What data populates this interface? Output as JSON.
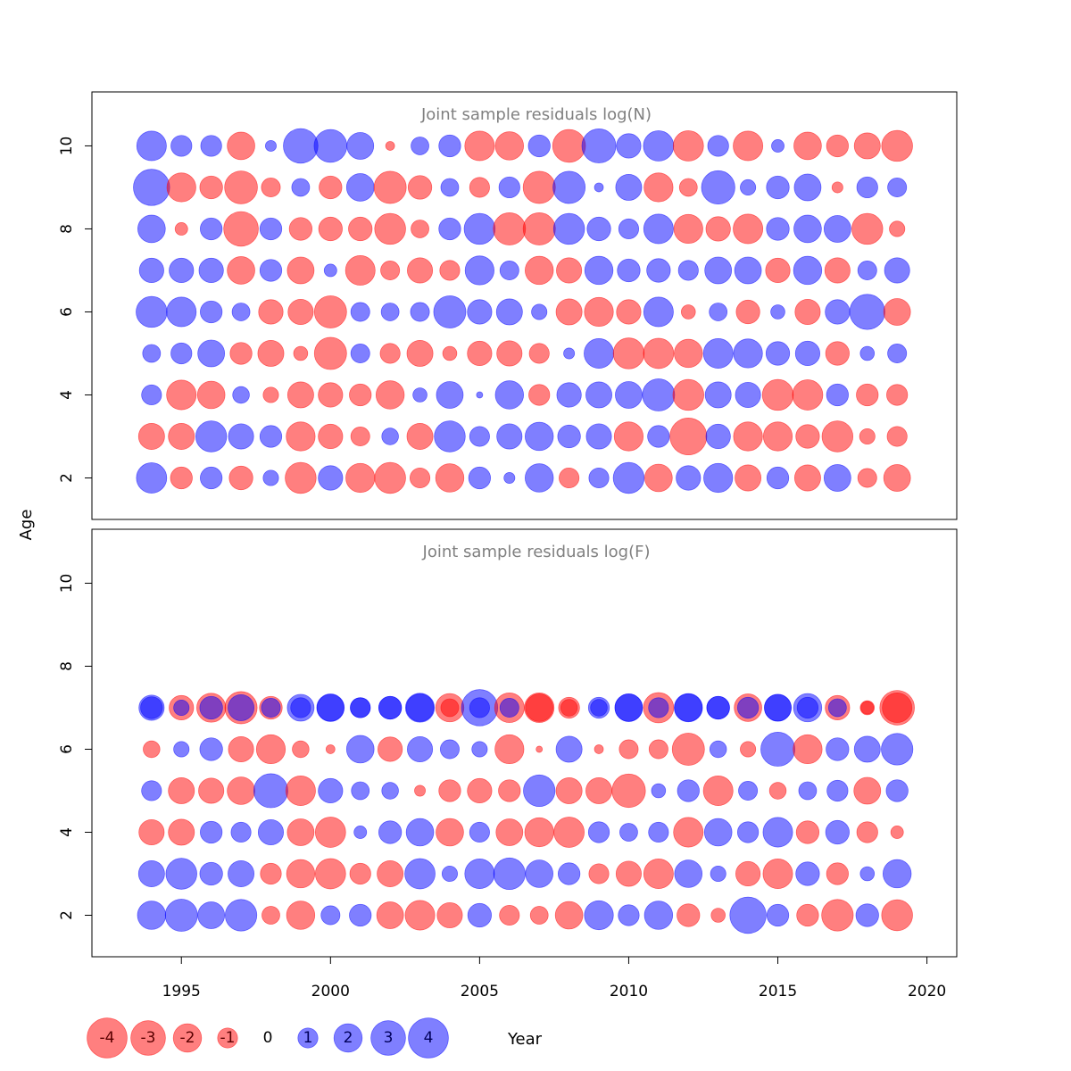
{
  "chart_data": [
    {
      "type": "scatter",
      "subtype": "bubble",
      "title": "Joint sample residuals log(N)",
      "ylabel": "Age",
      "xlabel": "Year",
      "xlim": [
        1992,
        2021
      ],
      "ylim": [
        1,
        11.3
      ],
      "yticks": [
        2,
        4,
        6,
        8,
        10
      ],
      "grid": false,
      "years": [
        1994,
        1995,
        1996,
        1997,
        1998,
        1999,
        2000,
        2001,
        2002,
        2003,
        2004,
        2005,
        2006,
        2007,
        2008,
        2009,
        2010,
        2011,
        2012,
        2013,
        2014,
        2015,
        2016,
        2017,
        2018,
        2019
      ],
      "ages": [
        2,
        3,
        4,
        5,
        6,
        7,
        8,
        9,
        10
      ],
      "residuals": [
        [
          2.3,
          -1.2,
          1.2,
          -1.4,
          0.6,
          -2.4,
          1.5,
          -2.1,
          -2.4,
          -1.0,
          -2.0,
          1.2,
          0.3,
          2.0,
          -1.0,
          1.0,
          2.4,
          -1.9,
          1.5,
          2.1,
          -1.7,
          1.2,
          -1.7,
          1.8,
          -0.9,
          -1.8
        ],
        [
          -1.7,
          -1.7,
          2.4,
          1.6,
          1.2,
          -2.1,
          -1.5,
          -0.9,
          0.7,
          -1.7,
          2.4,
          1.0,
          1.6,
          2.0,
          1.3,
          1.6,
          -2.1,
          1.2,
          -3.4,
          1.5,
          -2.1,
          -2.1,
          -1.4,
          -2.4,
          -0.6,
          -1.0
        ],
        [
          1.0,
          -2.2,
          -1.9,
          0.7,
          -0.6,
          -1.7,
          -1.5,
          -1.2,
          -2.0,
          0.5,
          1.8,
          0.1,
          2.0,
          -1.1,
          1.5,
          1.7,
          1.8,
          2.6,
          -2.4,
          1.7,
          1.6,
          -2.4,
          -2.3,
          1.2,
          -1.2,
          -1.1
        ],
        [
          0.8,
          1.1,
          1.8,
          -1.2,
          -1.7,
          -0.5,
          -2.6,
          0.9,
          -1.0,
          -1.7,
          -0.5,
          -1.5,
          -1.6,
          -1.0,
          0.3,
          2.2,
          -2.4,
          -2.3,
          -2.0,
          2.2,
          2.1,
          1.4,
          1.5,
          -1.4,
          0.5,
          0.9
        ],
        [
          2.4,
          2.2,
          1.2,
          0.8,
          -1.5,
          -1.6,
          -2.6,
          0.9,
          0.8,
          0.9,
          2.6,
          1.5,
          1.7,
          0.6,
          -1.7,
          -2.1,
          -1.5,
          2.2,
          -0.5,
          0.8,
          -1.4,
          0.5,
          -1.6,
          1.5,
          3.1,
          -1.8
        ],
        [
          1.5,
          1.5,
          1.5,
          -1.9,
          1.2,
          -1.8,
          0.4,
          -2.2,
          -0.9,
          -1.6,
          -1.0,
          2.1,
          0.9,
          -2.0,
          -1.6,
          2.0,
          1.3,
          1.4,
          1.0,
          1.8,
          1.8,
          -1.5,
          2.0,
          -1.6,
          0.9,
          1.6
        ],
        [
          1.9,
          -0.4,
          1.2,
          -3.0,
          1.2,
          -1.3,
          -1.4,
          -1.4,
          -2.4,
          -0.8,
          1.2,
          2.4,
          -2.6,
          -2.6,
          2.4,
          1.4,
          1.0,
          2.2,
          -2.1,
          -1.5,
          -2.2,
          1.3,
          1.9,
          1.8,
          -2.4,
          -0.6
        ],
        [
          3.3,
          -2.1,
          -1.3,
          -2.7,
          -0.9,
          0.8,
          -1.3,
          1.9,
          -2.6,
          -1.4,
          0.8,
          -1.0,
          1.1,
          -2.6,
          2.6,
          0.2,
          1.7,
          -2.1,
          -0.8,
          2.8,
          0.6,
          1.3,
          1.8,
          -0.3,
          1.1,
          0.9
        ],
        [
          2.2,
          1.1,
          1.1,
          -1.9,
          0.3,
          3.0,
          2.7,
          1.8,
          -0.2,
          0.8,
          1.2,
          -2.2,
          -2.0,
          1.2,
          -2.7,
          2.9,
          1.5,
          2.3,
          -2.3,
          1.1,
          -2.2,
          0.4,
          -1.9,
          -1.2,
          -1.7,
          -2.4
        ]
      ]
    },
    {
      "type": "scatter",
      "subtype": "bubble",
      "title": "Joint sample residuals log(F)",
      "ylabel": "Age",
      "xlabel": "Year",
      "xlim": [
        1992,
        2021
      ],
      "ylim": [
        1,
        11.3
      ],
      "xticks": [
        1995,
        2000,
        2005,
        2010,
        2015,
        2020
      ],
      "yticks": [
        2,
        4,
        6,
        8,
        10
      ],
      "grid": false,
      "years": [
        1994,
        1995,
        1996,
        1997,
        1998,
        1999,
        2000,
        2001,
        2002,
        2003,
        2004,
        2005,
        2006,
        2007,
        2008,
        2009,
        2010,
        2011,
        2012,
        2013,
        2014,
        2015,
        2016,
        2017,
        2018,
        2019
      ],
      "ages": [
        2,
        3,
        4,
        5,
        6,
        7
      ],
      "residuals": [
        [
          2.0,
          2.6,
          1.8,
          2.5,
          -0.8,
          -2.0,
          0.9,
          1.2,
          -1.8,
          -2.2,
          -1.6,
          1.4,
          -1.0,
          -0.8,
          -1.9,
          2.1,
          1.1,
          2.0,
          -1.3,
          -0.5,
          3.3,
          1.2,
          -1.2,
          -2.5,
          1.3,
          -2.4
        ],
        [
          1.7,
          2.4,
          1.3,
          1.7,
          -1.1,
          -2.0,
          -2.3,
          -1.1,
          -1.7,
          2.3,
          0.6,
          2.2,
          2.5,
          1.9,
          1.2,
          -1.0,
          -1.6,
          -2.2,
          1.9,
          0.6,
          -1.5,
          -2.2,
          1.4,
          -1.2,
          0.5,
          2.0
        ],
        [
          -1.6,
          -1.7,
          1.2,
          1.0,
          1.6,
          -1.8,
          -2.3,
          0.4,
          1.3,
          1.9,
          -1.9,
          1.0,
          -1.8,
          -2.1,
          -2.3,
          1.1,
          0.8,
          1.0,
          -2.2,
          1.9,
          1.1,
          2.2,
          -1.3,
          1.4,
          -1.1,
          -0.4
        ],
        [
          1.0,
          -1.7,
          -1.6,
          -1.9,
          2.9,
          -2.2,
          1.5,
          0.8,
          0.7,
          -0.3,
          -1.2,
          -1.5,
          -1.2,
          2.5,
          -1.7,
          -1.7,
          -2.8,
          0.5,
          1.2,
          -2.2,
          0.9,
          -0.7,
          0.8,
          1.1,
          -1.8,
          1.2
        ],
        [
          -0.7,
          0.6,
          1.3,
          -1.6,
          -2.1,
          -0.7,
          -0.2,
          1.9,
          -1.5,
          1.6,
          0.9,
          0.6,
          -2.1,
          -0.1,
          1.7,
          -0.2,
          -0.9,
          -0.9,
          -2.6,
          0.7,
          -0.6,
          2.9,
          -2.1,
          1.3,
          1.7,
          2.5
        ],
        [
          1.2,
          -1.5,
          -2.1,
          -2.6,
          -1.3,
          1.8,
          1.9,
          1.0,
          1.3,
          2.1,
          -2.0,
          3.3,
          -2.2,
          -1.9,
          -1.1,
          1.1,
          1.9,
          -2.3,
          2.0,
          1.3,
          -1.9,
          1.8,
          2.0,
          -1.5,
          -0.4,
          -3.0
        ]
      ],
      "overlay_residuals_age7": [
        1.6,
        0.6,
        1.3,
        1.7,
        0.9,
        1.0,
        1.8,
        1.0,
        1.3,
        1.9,
        -0.8,
        1.0,
        0.9,
        -2.2,
        -0.7,
        0.7,
        1.9,
        1.0,
        1.9,
        1.3,
        1.1,
        1.8,
        1.1,
        0.8,
        -0.5,
        -2.2
      ]
    }
  ],
  "legend": {
    "items": [
      {
        "label": "-4",
        "value": -4
      },
      {
        "label": "-3",
        "value": -3
      },
      {
        "label": "-2",
        "value": -2
      },
      {
        "label": "-1",
        "value": -1
      },
      {
        "label": "0",
        "value": 0
      },
      {
        "label": "1",
        "value": 1
      },
      {
        "label": "2",
        "value": 2
      },
      {
        "label": "3",
        "value": 3
      },
      {
        "label": "4",
        "value": 4
      }
    ],
    "placement": "bottom-left"
  },
  "colors": {
    "negative": "#ff0000",
    "positive": "#0000ff",
    "title": "#808080",
    "axis": "#000000"
  },
  "labels": {
    "shared_ylabel": "Age",
    "xlabel": "Year"
  }
}
